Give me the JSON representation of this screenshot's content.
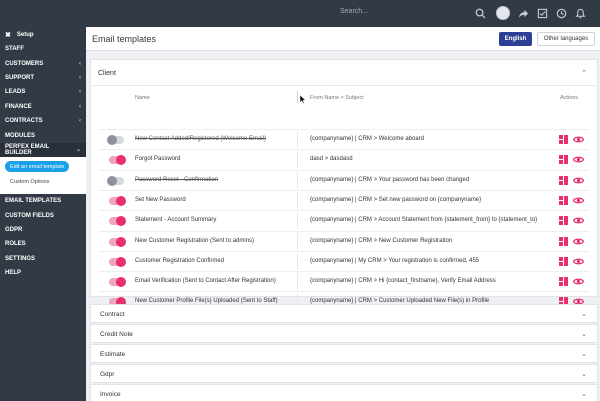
{
  "topbar": {
    "search_placeholder": "Search...",
    "icons": [
      "search-icon",
      "avatar",
      "share-icon",
      "checkbox-icon",
      "clock-icon",
      "bell-icon"
    ]
  },
  "sidebar": {
    "setup_label": "Setup",
    "items": [
      {
        "label": "STAFF",
        "chevron": false
      },
      {
        "label": "CUSTOMERS",
        "chevron": true
      },
      {
        "label": "SUPPORT",
        "chevron": true
      },
      {
        "label": "LEADS",
        "chevron": true
      },
      {
        "label": "FINANCE",
        "chevron": true
      },
      {
        "label": "CONTRACTS",
        "chevron": true
      },
      {
        "label": "MODULES",
        "chevron": false
      },
      {
        "label": "PERFEX EMAIL BUILDER",
        "chevron": true
      }
    ],
    "builder_sub": {
      "active_label": "Edit an email template",
      "custom_options_label": "Custom Options"
    },
    "items_after": [
      {
        "label": "EMAIL TEMPLATES"
      },
      {
        "label": "CUSTOM FIELDS"
      },
      {
        "label": "GDPR"
      },
      {
        "label": "ROLES"
      },
      {
        "label": "SETTINGS"
      },
      {
        "label": "HELP"
      }
    ]
  },
  "header": {
    "title": "Email templates",
    "english_button": "English",
    "other_languages_button": "Other languages"
  },
  "client_panel": {
    "title": "Client",
    "col_name": "Name",
    "col_subject": "From Name > Subject",
    "col_actions": "Actions",
    "rows": [
      {
        "name": "New Contact Added/Registered (Welcome Email)",
        "subject": "{companyname} | CRM > Welcome aboard",
        "enabled": false
      },
      {
        "name": "Forgot Password",
        "subject": "dasd > dasdasd",
        "enabled": true
      },
      {
        "name": "Password Reset - Confirmation",
        "subject": "{companyname} | CRM > Your password has been changed",
        "enabled": false
      },
      {
        "name": "Set New Password",
        "subject": "{companyname} | CRM > Set new password on {companyname}",
        "enabled": true
      },
      {
        "name": "Statement - Account Summary",
        "subject": "{companyname} | CRM > Account Statement from {statement_from} to {statement_to}",
        "enabled": true
      },
      {
        "name": "New Customer Registration (Sent to admins)",
        "subject": "{companyname} | CRM > New Customer Registration",
        "enabled": true
      },
      {
        "name": "Customer Registration Confirmed",
        "subject": "{companyname} | My CRM > Your registration is confirmed, 455",
        "enabled": true
      },
      {
        "name": "Email Verification (Sent to Contact After Registration)",
        "subject": "{companyname} | CRM > Hi {contact_firstname}, Verify Email Address",
        "enabled": true
      },
      {
        "name": "New Customer Profile File(s) Uploaded (Sent to Staff)",
        "subject": "{companyname} | CRM > Customer Uploaded New File(s) in Profile",
        "enabled": true
      }
    ]
  },
  "collapsed_panels": [
    "Contract",
    "Credit Note",
    "Estimate",
    "Gdpr",
    "Invoice"
  ],
  "colors": {
    "sidebar_bg": "#323a45",
    "accent_pink": "#e8306a",
    "english_btn": "#2c3f95",
    "active_pill": "#1aa0e6"
  }
}
